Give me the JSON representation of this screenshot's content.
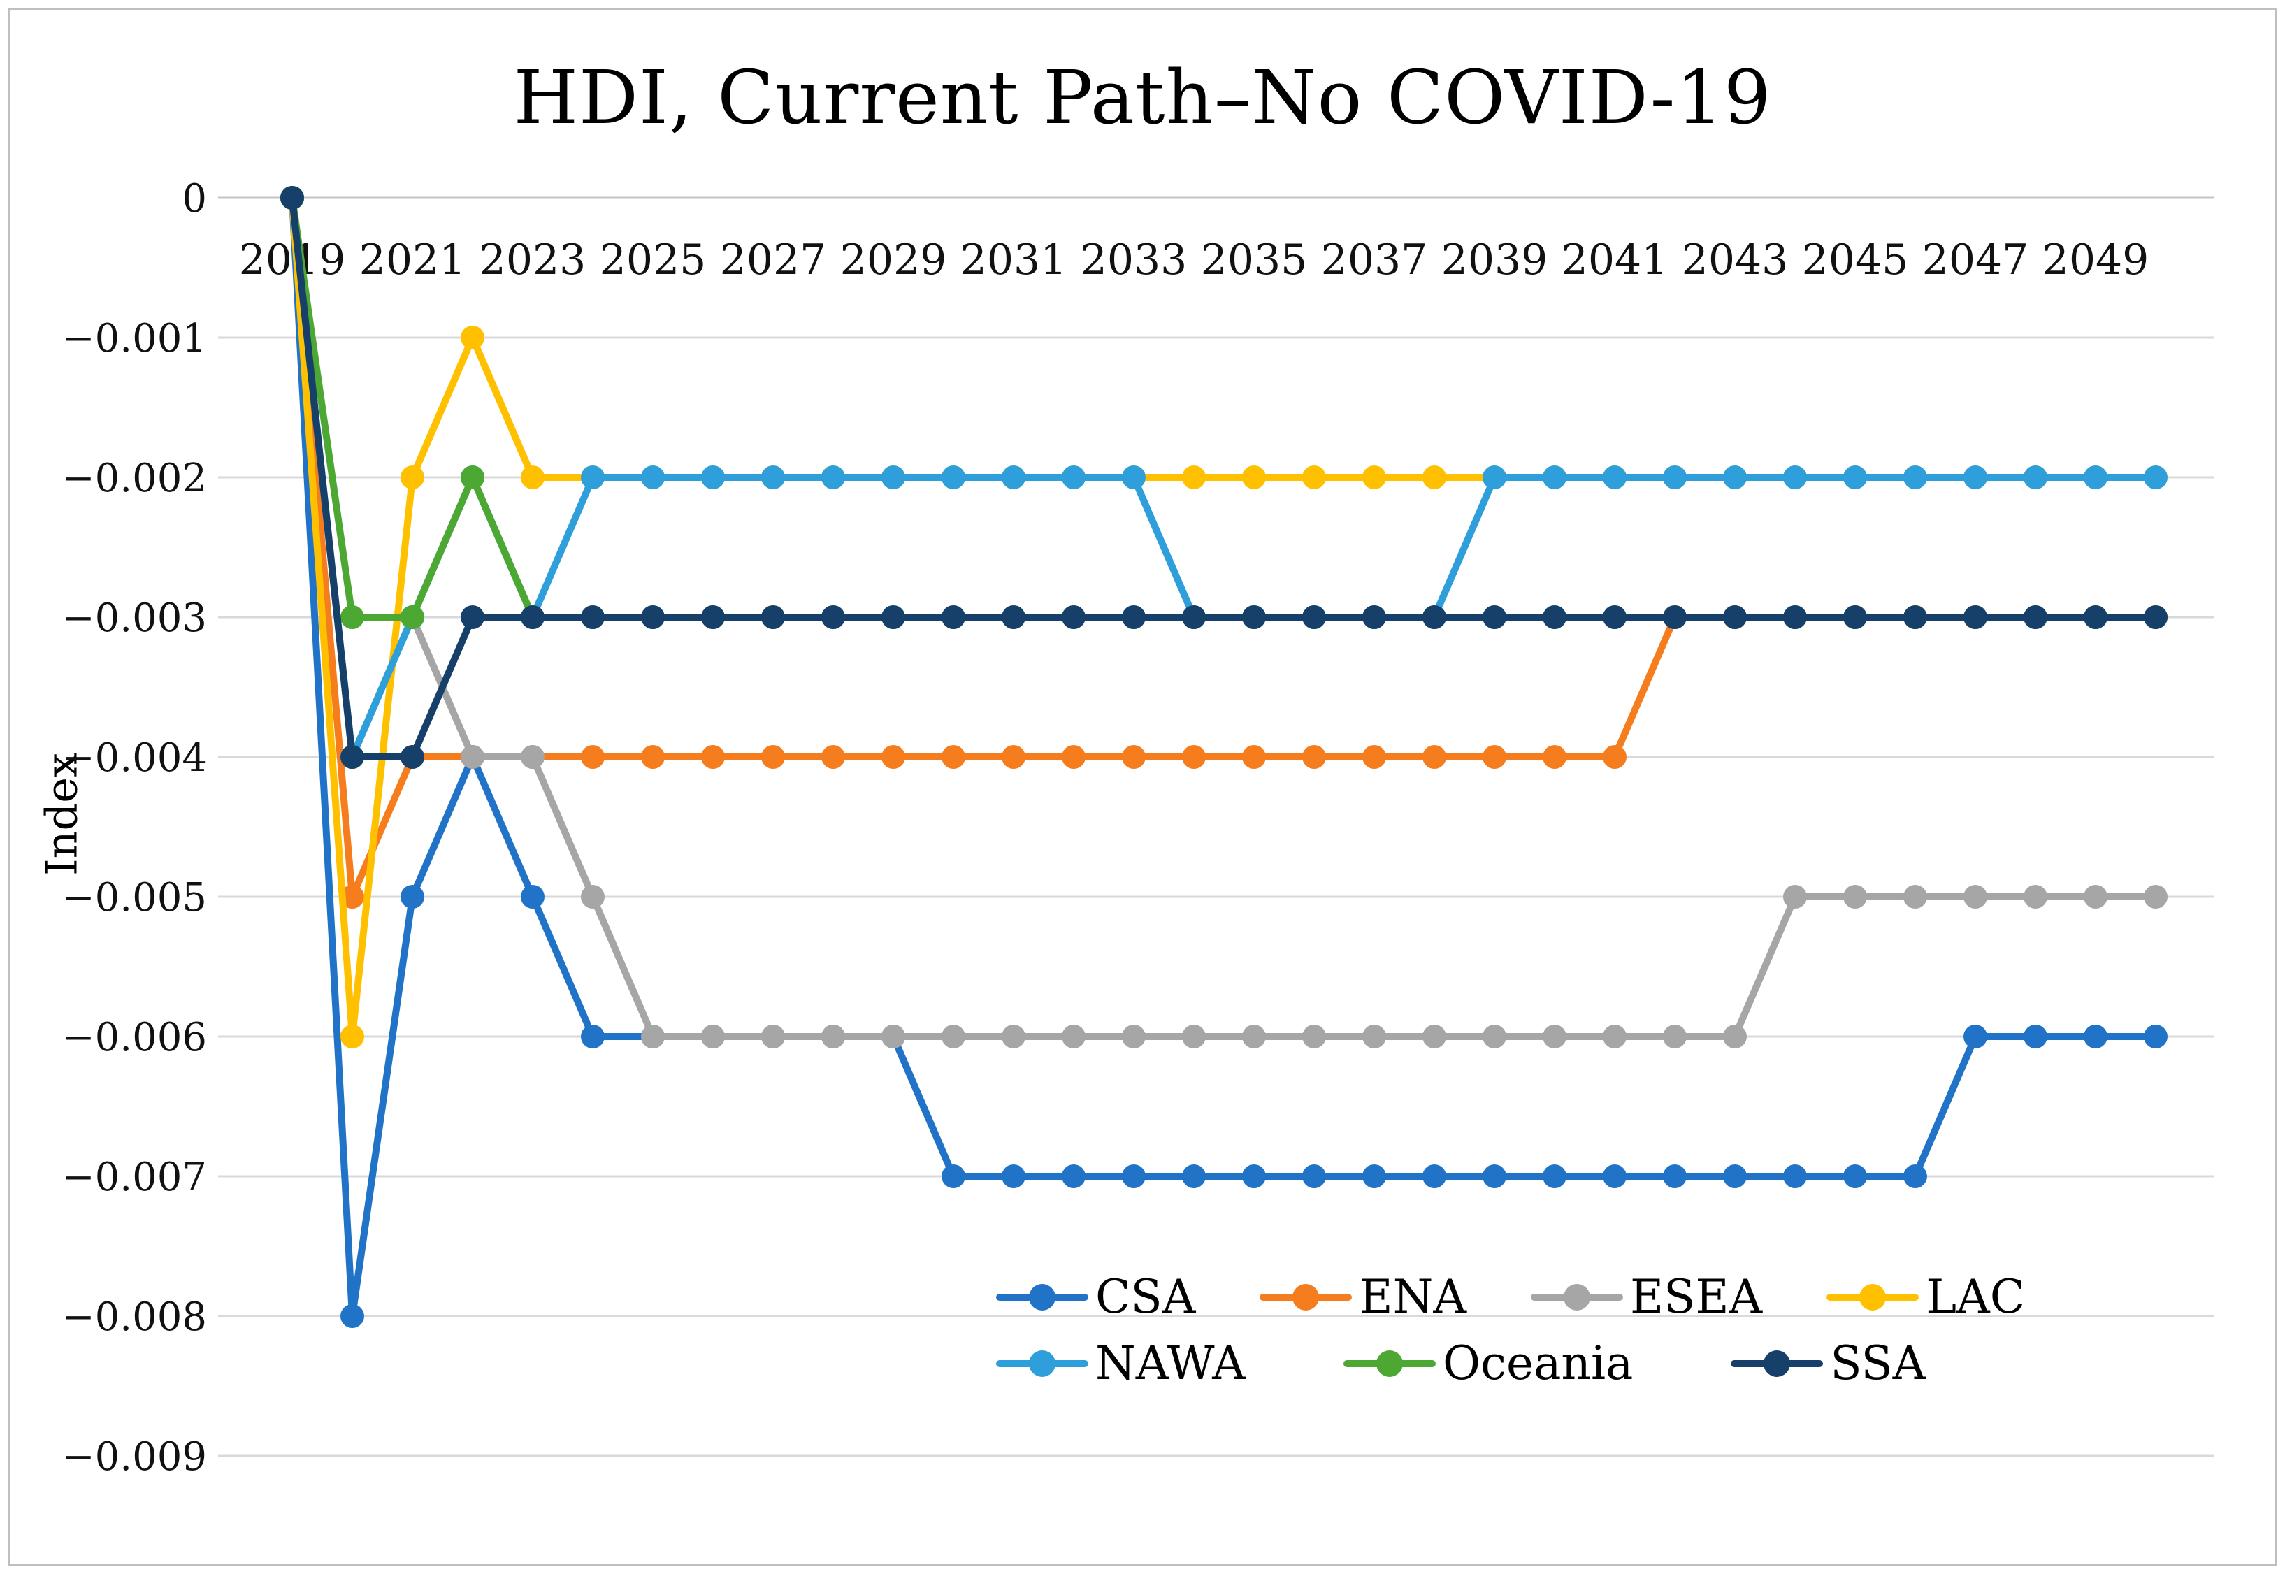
{
  "title": "HDI, Current Path–No COVID-19",
  "y_axis_label": "Index",
  "chart_data": {
    "type": "line",
    "title": "HDI, Current Path–No COVID-19",
    "xlabel": "",
    "ylabel": "Index",
    "x": [
      2019,
      2020,
      2021,
      2022,
      2023,
      2024,
      2025,
      2026,
      2027,
      2028,
      2029,
      2030,
      2031,
      2032,
      2033,
      2034,
      2035,
      2036,
      2037,
      2038,
      2039,
      2040,
      2041,
      2042,
      2043,
      2044,
      2045,
      2046,
      2047,
      2048,
      2049,
      2050
    ],
    "x_tick_labels": [
      "2019",
      "2021",
      "2023",
      "2025",
      "2027",
      "2029",
      "2031",
      "2033",
      "2035",
      "2037",
      "2039",
      "2041",
      "2043",
      "2045",
      "2047",
      "2049"
    ],
    "y_tick_labels": [
      "0",
      "−0.001",
      "−0.002",
      "−0.003",
      "−0.004",
      "−0.005",
      "−0.006",
      "−0.007",
      "−0.008",
      "−0.009"
    ],
    "ylim": [
      -0.009,
      0
    ],
    "grid": true,
    "legend_position": "inside-bottom",
    "marker": "circle",
    "series": [
      {
        "name": "CSA",
        "color": "#2073c6",
        "values": [
          0,
          -0.008,
          -0.005,
          -0.004,
          -0.005,
          -0.006,
          -0.006,
          -0.006,
          -0.006,
          -0.006,
          -0.006,
          -0.007,
          -0.007,
          -0.007,
          -0.007,
          -0.007,
          -0.007,
          -0.007,
          -0.007,
          -0.007,
          -0.007,
          -0.007,
          -0.007,
          -0.007,
          -0.007,
          -0.007,
          -0.007,
          -0.007,
          -0.006,
          -0.006,
          -0.006,
          -0.006
        ]
      },
      {
        "name": "ENA",
        "color": "#f57d1e",
        "values": [
          0,
          -0.005,
          -0.004,
          -0.004,
          -0.004,
          -0.004,
          -0.004,
          -0.004,
          -0.004,
          -0.004,
          -0.004,
          -0.004,
          -0.004,
          -0.004,
          -0.004,
          -0.004,
          -0.004,
          -0.004,
          -0.004,
          -0.004,
          -0.004,
          -0.004,
          -0.004,
          -0.003,
          -0.003,
          -0.003,
          -0.003,
          -0.003,
          -0.003,
          -0.003,
          -0.003,
          -0.003
        ]
      },
      {
        "name": "ESEA",
        "color": "#a6a6a6",
        "values": [
          0,
          -0.004,
          -0.003,
          -0.004,
          -0.004,
          -0.005,
          -0.006,
          -0.006,
          -0.006,
          -0.006,
          -0.006,
          -0.006,
          -0.006,
          -0.006,
          -0.006,
          -0.006,
          -0.006,
          -0.006,
          -0.006,
          -0.006,
          -0.006,
          -0.006,
          -0.006,
          -0.006,
          -0.006,
          -0.005,
          -0.005,
          -0.005,
          -0.005,
          -0.005,
          -0.005,
          -0.005
        ]
      },
      {
        "name": "LAC",
        "color": "#ffc000",
        "values": [
          0,
          -0.006,
          -0.002,
          -0.001,
          -0.002,
          -0.002,
          -0.002,
          -0.002,
          -0.002,
          -0.002,
          -0.002,
          -0.002,
          -0.002,
          -0.002,
          -0.002,
          -0.002,
          -0.002,
          -0.002,
          -0.002,
          -0.002,
          -0.002,
          -0.002,
          -0.002,
          -0.002,
          -0.002,
          -0.002,
          -0.002,
          -0.002,
          -0.002,
          -0.002,
          -0.002,
          -0.002
        ]
      },
      {
        "name": "NAWA",
        "color": "#2e9fda",
        "values": [
          0,
          -0.004,
          -0.003,
          -0.002,
          -0.003,
          -0.002,
          -0.002,
          -0.002,
          -0.002,
          -0.002,
          -0.002,
          -0.002,
          -0.002,
          -0.002,
          -0.002,
          -0.003,
          -0.003,
          -0.003,
          -0.003,
          -0.003,
          -0.002,
          -0.002,
          -0.002,
          -0.002,
          -0.002,
          -0.002,
          -0.002,
          -0.002,
          -0.002,
          -0.002,
          -0.002,
          -0.002
        ]
      },
      {
        "name": "Oceania",
        "color": "#4ca733",
        "values": [
          0,
          -0.003,
          -0.003,
          -0.002,
          -0.003,
          -0.003,
          -0.003,
          -0.003,
          -0.003,
          -0.003,
          -0.003,
          -0.003,
          -0.003,
          -0.003,
          -0.003,
          -0.003,
          -0.003,
          -0.003,
          -0.003,
          -0.003,
          -0.003,
          -0.003,
          -0.003,
          -0.003,
          -0.003,
          -0.003,
          -0.003,
          -0.003,
          -0.003,
          -0.003,
          -0.003,
          -0.003
        ]
      },
      {
        "name": "SSA",
        "color": "#16406a",
        "values": [
          0,
          -0.004,
          -0.004,
          -0.003,
          -0.003,
          -0.003,
          -0.003,
          -0.003,
          -0.003,
          -0.003,
          -0.003,
          -0.003,
          -0.003,
          -0.003,
          -0.003,
          -0.003,
          -0.003,
          -0.003,
          -0.003,
          -0.003,
          -0.003,
          -0.003,
          -0.003,
          -0.003,
          -0.003,
          -0.003,
          -0.003,
          -0.003,
          -0.003,
          -0.003,
          -0.003,
          -0.003
        ]
      }
    ],
    "legend_rows": [
      [
        "CSA",
        "ENA",
        "ESEA",
        "LAC"
      ],
      [
        "NAWA",
        "Oceania",
        "SSA"
      ]
    ]
  },
  "colors": {
    "gridline": "#d9d9d9",
    "zero_line": "#c4c4c4",
    "frame_border": "#bfbfbf",
    "background": "#ffffff"
  }
}
